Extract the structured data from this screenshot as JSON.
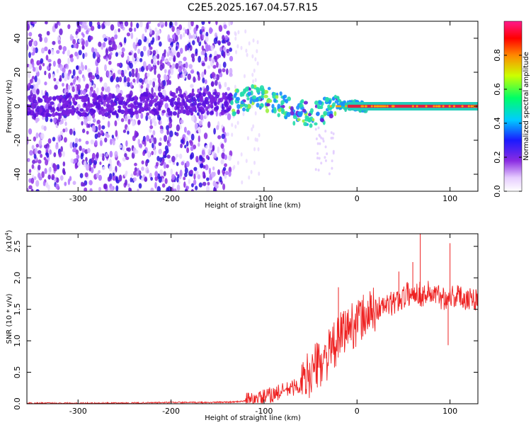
{
  "title": "C2E5.2025.167.04.57.R15",
  "colors": {
    "line": "#ee2222",
    "spectrogram_scatter": "#7a20e0",
    "spectrogram_core": "#22ddaa",
    "carrier": "#e02040"
  },
  "chart_data": [
    {
      "type": "heatmap",
      "xlabel": "Height of straight line (km)",
      "ylabel": "Frequency (Hz)",
      "xlim": [
        -355,
        130
      ],
      "ylim": [
        -50,
        50
      ],
      "x_ticks": [
        -300,
        -200,
        -100,
        0,
        100
      ],
      "x_tick_labels": [
        "-300",
        "-200",
        "-100",
        "0",
        "100"
      ],
      "y_ticks": [
        -40,
        -20,
        0,
        20,
        40
      ],
      "y_tick_labels": [
        "-40",
        "-20",
        "0",
        "20",
        "40"
      ],
      "colorbar": {
        "label": "Normalized spectral amplitude",
        "range": [
          0,
          1
        ],
        "colormap": "rainbow",
        "ticks": [
          0.0,
          0.2,
          0.4,
          0.6,
          0.8
        ],
        "tick_labels": [
          "0.0",
          "0.2",
          "0.4",
          "0.6",
          "0.8"
        ]
      },
      "description_points": [
        {
          "x": -355,
          "freq": 0,
          "amp": 0.1
        },
        {
          "x": -130,
          "freq": 2,
          "amp": 0.2
        },
        {
          "x": -110,
          "freq": 6,
          "amp": 0.45
        },
        {
          "x": -90,
          "freq": 3,
          "amp": 0.5
        },
        {
          "x": -70,
          "freq": -3,
          "amp": 0.55
        },
        {
          "x": -45,
          "freq": -5,
          "amp": 0.5
        },
        {
          "x": -20,
          "freq": 1,
          "amp": 0.7
        },
        {
          "x": 0,
          "freq": 0,
          "amp": 0.9
        },
        {
          "x": 130,
          "freq": 0,
          "amp": 1.0
        }
      ]
    },
    {
      "type": "line",
      "xlabel": "Height of straight line (km)",
      "ylabel": "SNR (10 * v/v)",
      "y_scale_label": "(x10",
      "y_scale_exponent": "4",
      "y_scale_suffix": ")",
      "xlim": [
        -355,
        130
      ],
      "ylim": [
        0,
        2.7
      ],
      "x_ticks": [
        -300,
        -200,
        -100,
        0,
        100
      ],
      "x_tick_labels": [
        "-300",
        "-200",
        "-100",
        "0",
        "100"
      ],
      "y_ticks": [
        0,
        0.5,
        1.0,
        1.5,
        2.0,
        2.5
      ],
      "y_tick_labels": [
        "0.0",
        "0.5",
        "1.0",
        "1.5",
        "2.0",
        "2.5"
      ],
      "series": [
        {
          "x": [
            -355,
            -300,
            -250,
            -200,
            -160,
            -130,
            -110,
            -100,
            -90,
            -80,
            -70,
            -60,
            -50,
            -40,
            -35,
            -30,
            -20,
            -15,
            -10,
            -5,
            0,
            10,
            20,
            30,
            40,
            50,
            55,
            60,
            65,
            70,
            75,
            80,
            85,
            90,
            95,
            100,
            110,
            120,
            130
          ],
          "y": [
            0.01,
            0.01,
            0.01,
            0.02,
            0.02,
            0.03,
            0.06,
            0.1,
            0.15,
            0.2,
            0.25,
            0.3,
            0.5,
            0.65,
            0.7,
            0.8,
            1.0,
            1.15,
            1.2,
            1.25,
            1.3,
            1.4,
            1.5,
            1.55,
            1.6,
            1.7,
            1.75,
            1.72,
            1.8,
            1.7,
            1.78,
            1.75,
            1.72,
            1.7,
            1.68,
            1.72,
            1.7,
            1.68,
            1.67
          ],
          "spikes": [
            {
              "x": -20,
              "y": 1.85
            },
            {
              "x": 68,
              "y": 2.7
            },
            {
              "x": 60,
              "y": 2.25
            },
            {
              "x": 45,
              "y": 2.1
            },
            {
              "x": 100,
              "y": 2.55
            },
            {
              "x": 98,
              "y": 0.93
            }
          ]
        }
      ]
    }
  ]
}
